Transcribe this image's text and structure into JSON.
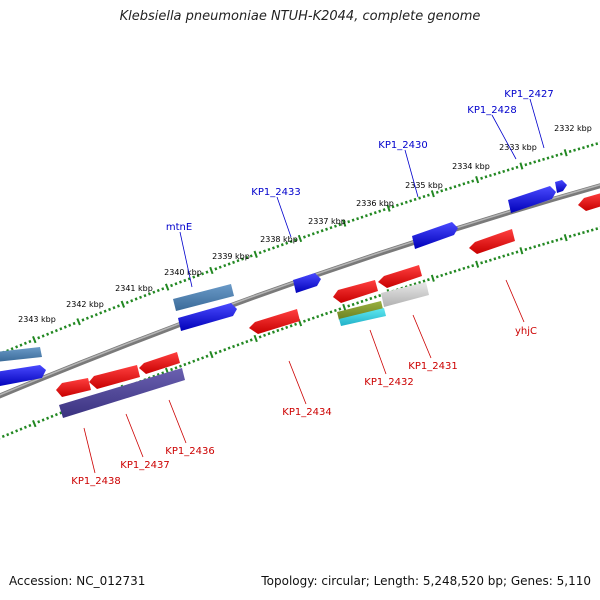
{
  "title": "Klebsiella pneumoniae NTUH-K2044, complete genome",
  "footer": {
    "accession": "Accession: NC_012731",
    "summary": "Topology: circular; Length: 5,248,520 bp; Genes: 5,110"
  },
  "colors": {
    "forward_label": "#0000cc",
    "reverse_label": "#cc0000",
    "tick": "#228822",
    "backbone": "#7a7a7a"
  },
  "kbp_labels": [
    "2332 kbp",
    "2333 kbp",
    "2334 kbp",
    "2335 kbp",
    "2336 kbp",
    "2337 kbp",
    "2338 kbp",
    "2339 kbp",
    "2340 kbp",
    "2341 kbp",
    "2342 kbp",
    "2343 kbp"
  ],
  "forward_labels": [
    "KP1_2427",
    "KP1_2428",
    "KP1_2430",
    "KP1_2433",
    "mtnE"
  ],
  "reverse_labels": [
    "yhjC",
    "KP1_2431",
    "KP1_2432",
    "KP1_2434",
    "KP1_2436",
    "KP1_2437",
    "KP1_2438"
  ]
}
